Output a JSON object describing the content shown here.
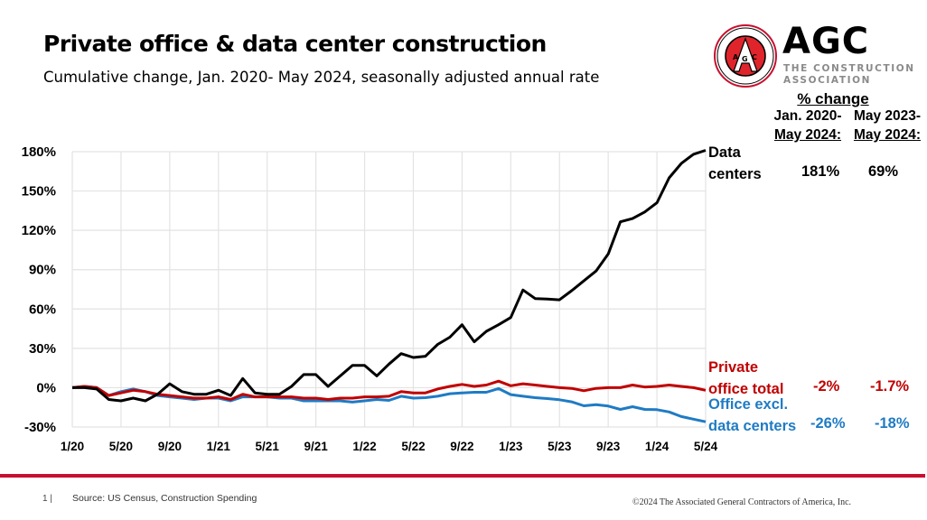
{
  "header": {
    "title": "Private office & data center construction",
    "subtitle": "Cumulative change, Jan. 2020- May 2024, seasonally adjusted annual rate"
  },
  "logo": {
    "word": "AGC",
    "tagline_1": "THE CONSTRUCTION",
    "tagline_2": "ASSOCIATION",
    "seal_text": "ASSOCIATED GENERAL CONTRACTORS OF AMERICA",
    "seal_letters": "AGC",
    "brand_color": "#c8102e"
  },
  "table": {
    "heading": "% change",
    "col1_line1": "Jan. 2020-",
    "col1_line2": "May 2024:",
    "col2_line1": "May 2023-",
    "col2_line2": "May 2024:",
    "rows": [
      {
        "label_1": "Data",
        "label_2": "centers",
        "col1": "181%",
        "col2": "69%",
        "color": "#000000"
      },
      {
        "label_1": "Private",
        "label_2": "office total",
        "col1": "-2%",
        "col2": "-1.7%",
        "color": "#c00000"
      },
      {
        "label_1": "Office excl.",
        "label_2": "data centers",
        "col1": "-26%",
        "col2": "-18%",
        "color": "#1f7bc4"
      }
    ]
  },
  "chart_data": {
    "type": "line",
    "title": "",
    "xlabel": "",
    "ylabel": "",
    "ylim": [
      -30,
      180
    ],
    "grid": true,
    "x_start": "1/20",
    "x_end": "5/24",
    "x_frequency": "monthly",
    "x_tick_labels": [
      "1/20",
      "5/20",
      "9/20",
      "1/21",
      "5/21",
      "9/21",
      "1/22",
      "5/22",
      "9/22",
      "1/23",
      "5/23",
      "9/23",
      "1/24",
      "5/24"
    ],
    "y_tick_labels": [
      "180%",
      "150%",
      "120%",
      "90%",
      "60%",
      "30%",
      "0%",
      "-30%"
    ],
    "y_ticks": [
      180,
      150,
      120,
      90,
      60,
      30,
      0,
      -30
    ],
    "series": [
      {
        "name": "Data centers",
        "color": "#000000",
        "values": [
          0,
          0,
          -1,
          -9,
          -10,
          -8,
          -10,
          -5,
          3,
          -3,
          -5,
          -5,
          -2,
          -6,
          7,
          -4,
          -5,
          -5,
          1,
          10,
          10,
          1,
          9,
          17,
          17,
          9,
          18,
          26,
          23,
          24,
          33,
          38.5,
          48,
          35,
          43,
          48,
          53.5,
          74.5,
          68,
          67.6,
          67,
          74,
          81.5,
          89,
          102,
          126.5,
          129,
          134,
          141,
          160,
          171,
          178,
          181
        ]
      },
      {
        "name": "Private office total",
        "color": "#c00000",
        "values": [
          0,
          1,
          0,
          -6,
          -4,
          -2,
          -3,
          -5,
          -6,
          -7,
          -8,
          -8,
          -7,
          -9,
          -5,
          -7,
          -7,
          -7,
          -7,
          -8,
          -8,
          -9,
          -8,
          -8,
          -7,
          -7,
          -6.5,
          -3,
          -4,
          -4,
          -1,
          1,
          2.5,
          1,
          2,
          5,
          1.5,
          3,
          2,
          1,
          0,
          -0.5,
          -2.3,
          -0.5,
          0,
          0,
          2,
          0.5,
          1,
          2,
          1,
          0,
          -2
        ]
      },
      {
        "name": "Office excl. data centers",
        "color": "#1f7bc4",
        "values": [
          0,
          1,
          0,
          -6,
          -3,
          -1,
          -3,
          -6,
          -7,
          -8,
          -9,
          -8,
          -8,
          -10,
          -7,
          -7,
          -7,
          -8,
          -8,
          -10,
          -10,
          -10,
          -10,
          -11,
          -10,
          -9,
          -9.7,
          -6.5,
          -8,
          -7.6,
          -6.5,
          -4.6,
          -4,
          -3.5,
          -3.5,
          -0.7,
          -5.3,
          -6.5,
          -7.6,
          -8.3,
          -9.2,
          -10.8,
          -13.8,
          -12.9,
          -14,
          -16.6,
          -14.5,
          -16.6,
          -16.8,
          -18.5,
          -22,
          -24,
          -26
        ]
      }
    ]
  },
  "footer": {
    "page_number": "1 |",
    "source": "Source: US Census, Construction Spending",
    "copyright": "©2024 The Associated General Contractors of America, Inc."
  }
}
